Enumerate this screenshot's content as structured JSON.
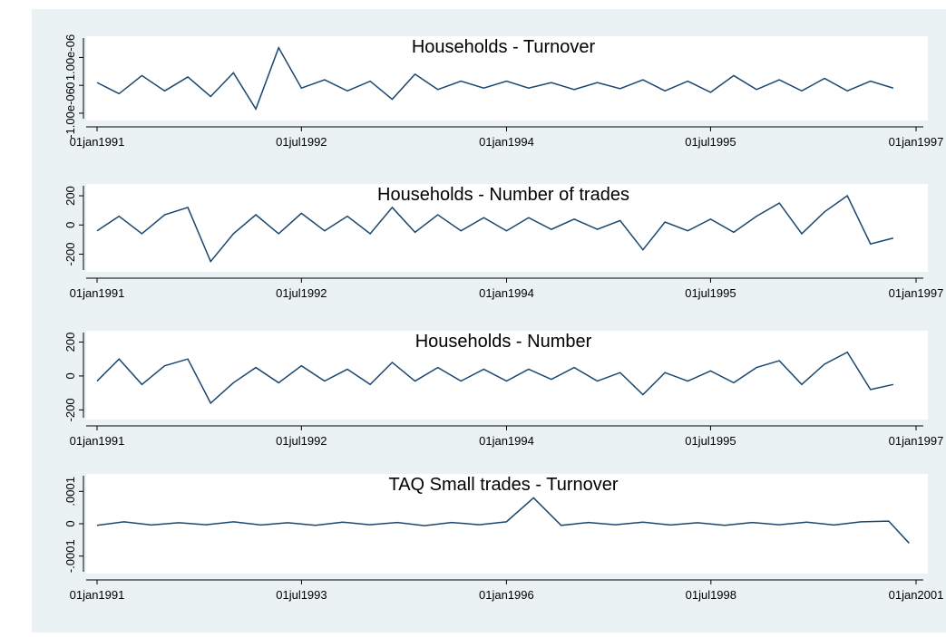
{
  "chart_data": [
    {
      "type": "line",
      "title": "Households - Turnover",
      "x": [
        "1991-01-01",
        "1991-03-01",
        "1991-05-01",
        "1991-07-01",
        "1991-09-01",
        "1991-11-01",
        "1992-01-01",
        "1992-03-01",
        "1992-05-01",
        "1992-07-01",
        "1992-09-01",
        "1992-11-01",
        "1993-01-01",
        "1993-03-01",
        "1993-05-01",
        "1993-07-01",
        "1993-09-01",
        "1993-11-01",
        "1994-01-01",
        "1994-03-01",
        "1994-05-01",
        "1994-07-01",
        "1994-09-01",
        "1994-11-01",
        "1995-01-01",
        "1995-03-01",
        "1995-05-01",
        "1995-07-01",
        "1995-09-01",
        "1995-11-01",
        "1996-01-01",
        "1996-03-01",
        "1996-05-01",
        "1996-07-01",
        "1996-09-01",
        "1996-11-01"
      ],
      "series": [
        {
          "color": "#1a476f",
          "values": [
            1e-07,
            -3e-07,
            3.5e-07,
            -2e-07,
            3e-07,
            -4e-07,
            4.5e-07,
            -8.5e-07,
            1.35e-06,
            -1e-07,
            2e-07,
            -2e-07,
            1.5e-07,
            -5e-07,
            4e-07,
            -1.5e-07,
            1.5e-07,
            -1e-07,
            1.5e-07,
            -1e-07,
            1e-07,
            -1.5e-07,
            1e-07,
            -1.2e-07,
            2e-07,
            -2e-07,
            1.5e-07,
            -2.5e-07,
            3.5e-07,
            -1.5e-07,
            2e-07,
            -2e-07,
            2.5e-07,
            -2e-07,
            1.5e-07,
            -1e-07
          ]
        }
      ],
      "xlim": [
        "1991-01-01",
        "1997-01-01"
      ],
      "xticks": [
        {
          "value": "1991-01-01",
          "label": "01jan1991"
        },
        {
          "value": "1992-07-01",
          "label": "01jul1992"
        },
        {
          "value": "1994-01-01",
          "label": "01jan1994"
        },
        {
          "value": "1995-07-01",
          "label": "01jul1995"
        },
        {
          "value": "1997-01-01",
          "label": "01jan1997"
        }
      ],
      "ylim": [
        -1.1e-06,
        1.6e-06
      ],
      "yticks": [
        {
          "value": -1e-06,
          "label": "-1.00e-06"
        },
        0,
        {
          "value": 1e-06,
          "label": "1.00e-06"
        }
      ]
    },
    {
      "type": "line",
      "title": "Households - Number of trades",
      "x": [
        "1991-01-01",
        "1991-03-01",
        "1991-05-01",
        "1991-07-01",
        "1991-09-01",
        "1991-11-01",
        "1992-01-01",
        "1992-03-01",
        "1992-05-01",
        "1992-07-01",
        "1992-09-01",
        "1992-11-01",
        "1993-01-01",
        "1993-03-01",
        "1993-05-01",
        "1993-07-01",
        "1993-09-01",
        "1993-11-01",
        "1994-01-01",
        "1994-03-01",
        "1994-05-01",
        "1994-07-01",
        "1994-09-01",
        "1994-11-01",
        "1995-01-01",
        "1995-03-01",
        "1995-05-01",
        "1995-07-01",
        "1995-09-01",
        "1995-11-01",
        "1996-01-01",
        "1996-03-01",
        "1996-05-01",
        "1996-07-01",
        "1996-09-01",
        "1996-11-01"
      ],
      "series": [
        {
          "color": "#1a476f",
          "values": [
            -40,
            60,
            -60,
            70,
            120,
            -250,
            -60,
            70,
            -60,
            80,
            -40,
            60,
            -60,
            120,
            -50,
            70,
            -40,
            50,
            -40,
            50,
            -30,
            40,
            -30,
            30,
            -170,
            20,
            -40,
            40,
            -50,
            60,
            150,
            -60,
            90,
            200,
            -130,
            -90
          ]
        }
      ],
      "xlim": [
        "1991-01-01",
        "1997-01-01"
      ],
      "xticks": [
        {
          "value": "1991-01-01",
          "label": "01jan1991"
        },
        {
          "value": "1992-07-01",
          "label": "01jul1992"
        },
        {
          "value": "1994-01-01",
          "label": "01jan1994"
        },
        {
          "value": "1995-07-01",
          "label": "01jul1995"
        },
        {
          "value": "1997-01-01",
          "label": "01jan1997"
        }
      ],
      "ylim": [
        -290,
        250
      ],
      "yticks": [
        -200,
        0,
        200
      ]
    },
    {
      "type": "line",
      "title": "Households - Number",
      "x": [
        "1991-01-01",
        "1991-03-01",
        "1991-05-01",
        "1991-07-01",
        "1991-09-01",
        "1991-11-01",
        "1992-01-01",
        "1992-03-01",
        "1992-05-01",
        "1992-07-01",
        "1992-09-01",
        "1992-11-01",
        "1993-01-01",
        "1993-03-01",
        "1993-05-01",
        "1993-07-01",
        "1993-09-01",
        "1993-11-01",
        "1994-01-01",
        "1994-03-01",
        "1994-05-01",
        "1994-07-01",
        "1994-09-01",
        "1994-11-01",
        "1995-01-01",
        "1995-03-01",
        "1995-05-01",
        "1995-07-01",
        "1995-09-01",
        "1995-11-01",
        "1996-01-01",
        "1996-03-01",
        "1996-05-01",
        "1996-07-01",
        "1996-09-01",
        "1996-11-01"
      ],
      "series": [
        {
          "color": "#1a476f",
          "values": [
            -30,
            100,
            -50,
            60,
            100,
            -160,
            -40,
            50,
            -40,
            60,
            -30,
            40,
            -50,
            80,
            -30,
            50,
            -30,
            40,
            -30,
            40,
            -20,
            50,
            -30,
            20,
            -110,
            20,
            -30,
            30,
            -40,
            50,
            90,
            -50,
            70,
            140,
            -80,
            -50
          ]
        }
      ],
      "xlim": [
        "1991-01-01",
        "1997-01-01"
      ],
      "xticks": [
        {
          "value": "1991-01-01",
          "label": "01jan1991"
        },
        {
          "value": "1992-07-01",
          "label": "01jul1992"
        },
        {
          "value": "1994-01-01",
          "label": "01jan1994"
        },
        {
          "value": "1995-07-01",
          "label": "01jul1995"
        },
        {
          "value": "1997-01-01",
          "label": "01jan1997"
        }
      ],
      "ylim": [
        -230,
        240
      ],
      "yticks": [
        -200,
        0,
        200
      ]
    },
    {
      "type": "line",
      "title": "TAQ Small trades - Turnover",
      "x": [
        "1991-01-01",
        "1991-05-01",
        "1991-09-01",
        "1992-01-01",
        "1992-05-01",
        "1992-09-01",
        "1993-01-01",
        "1993-05-01",
        "1993-09-01",
        "1994-01-01",
        "1994-05-01",
        "1994-09-01",
        "1995-01-01",
        "1995-05-01",
        "1995-09-01",
        "1996-01-01",
        "1996-05-01",
        "1996-09-01",
        "1997-01-01",
        "1997-05-01",
        "1997-09-01",
        "1998-01-01",
        "1998-05-01",
        "1998-09-01",
        "1999-01-01",
        "1999-05-01",
        "1999-09-01",
        "2000-01-01",
        "2000-05-01",
        "2000-09-01",
        "2000-12-01"
      ],
      "series": [
        {
          "color": "#1a476f",
          "values": [
            -5e-06,
            6e-06,
            -4e-06,
            3e-06,
            -3e-06,
            6e-06,
            -4e-06,
            3e-06,
            -5e-06,
            5e-06,
            -3e-06,
            4e-06,
            -6e-06,
            4e-06,
            -3e-06,
            6e-06,
            8e-05,
            -5e-06,
            4e-06,
            -3e-06,
            5e-06,
            -4e-06,
            3e-06,
            -5e-06,
            4e-06,
            -3e-06,
            5e-06,
            -4e-06,
            6e-06,
            8e-06,
            -6e-05
          ]
        }
      ],
      "xlim": [
        "1991-01-01",
        "2001-01-01"
      ],
      "xticks": [
        {
          "value": "1991-01-01",
          "label": "01jan1991"
        },
        {
          "value": "1993-07-01",
          "label": "01jul1993"
        },
        {
          "value": "1996-01-01",
          "label": "01jan1996"
        },
        {
          "value": "1998-07-01",
          "label": "01jul1998"
        },
        {
          "value": "2001-01-01",
          "label": "01jan2001"
        }
      ],
      "ylim": [
        -0.00014,
        0.00014
      ],
      "yticks": [
        {
          "value": -0.0001,
          "label": "-.0001"
        },
        0,
        {
          "value": 0.0001,
          "label": ".0001"
        }
      ]
    }
  ]
}
